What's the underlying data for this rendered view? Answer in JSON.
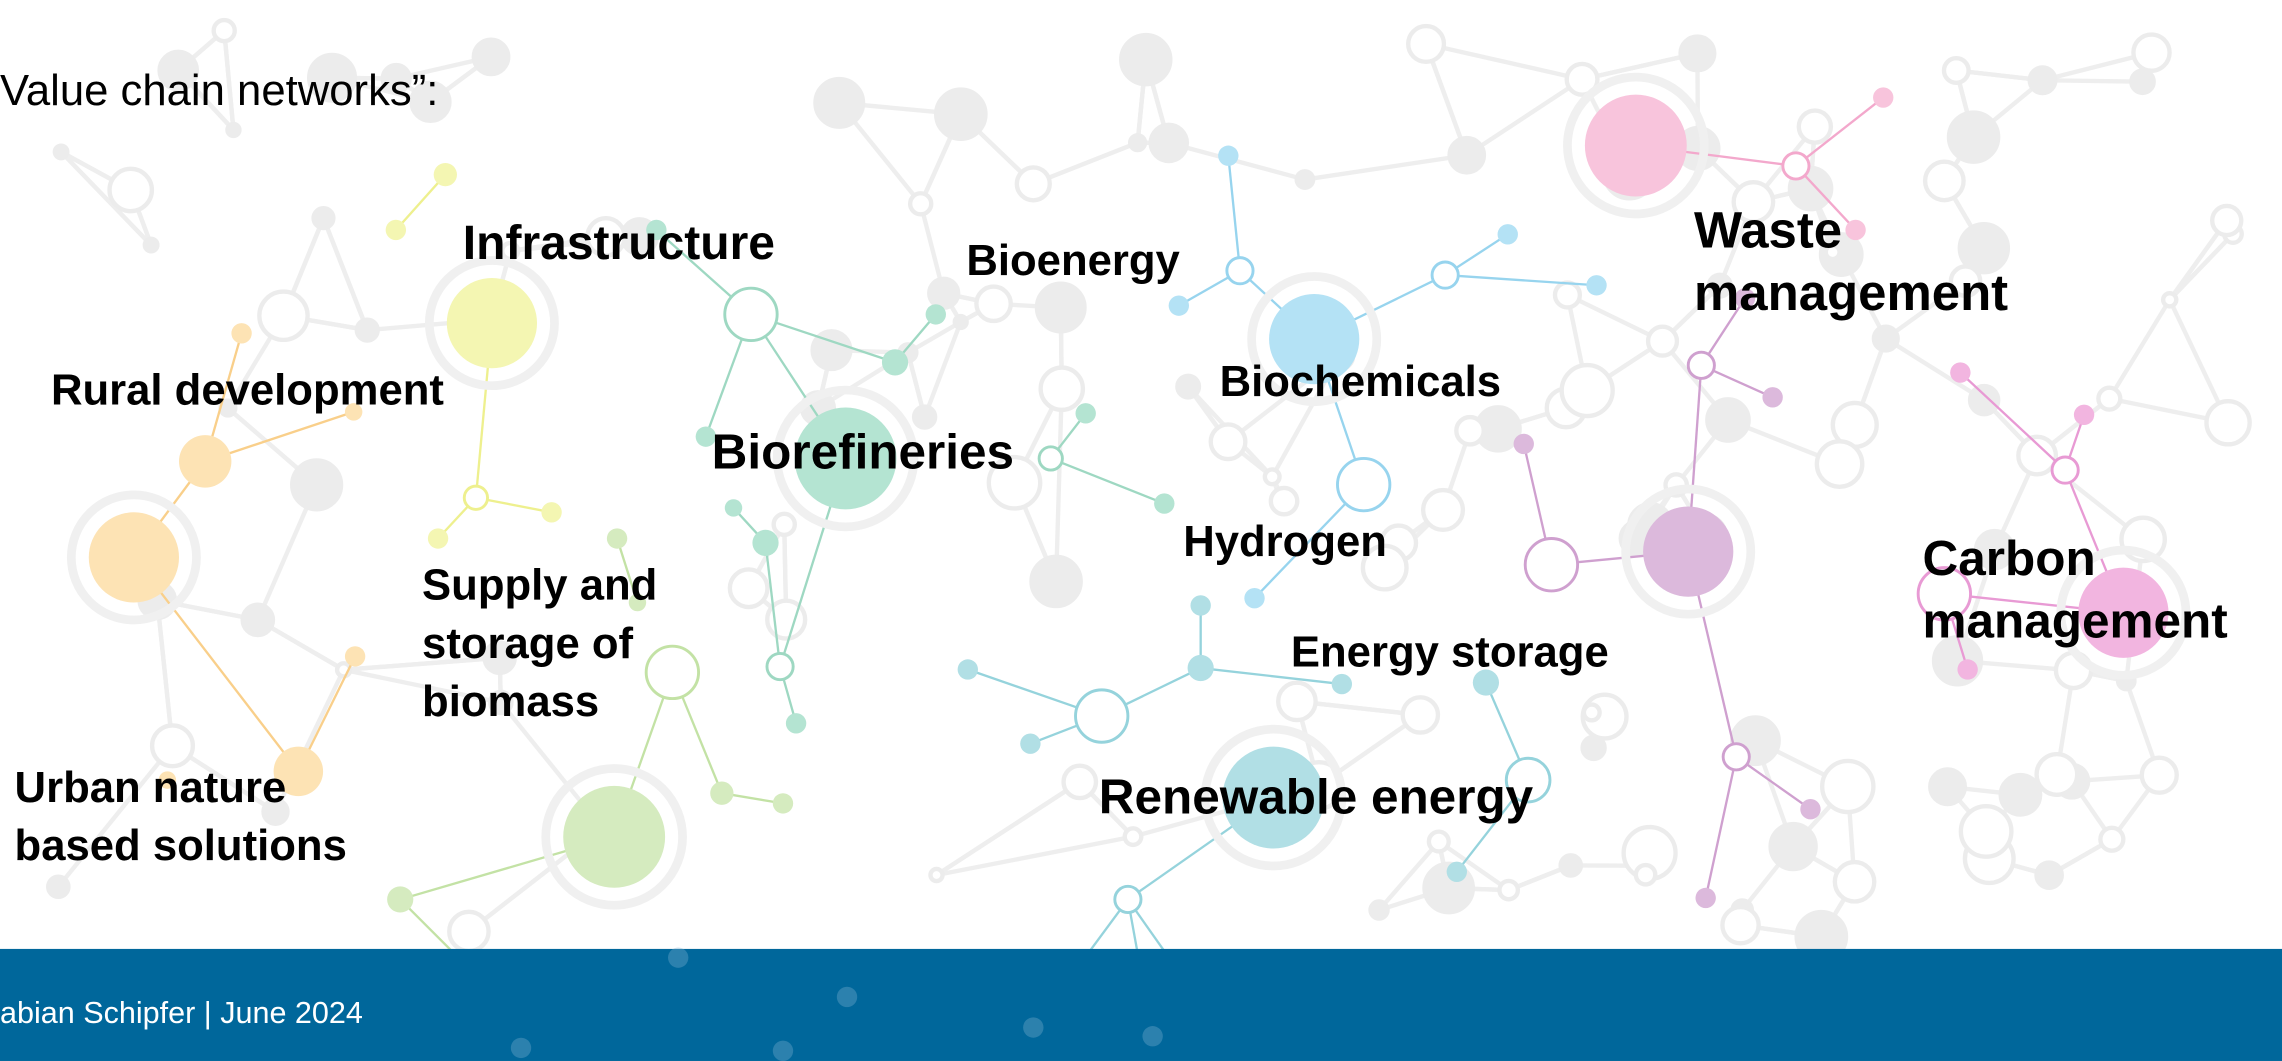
{
  "heading": "Value chain networks”:",
  "footer": "abian Schipfer | June 2024",
  "nodes": [
    {
      "lines": [
        "Infrastructure"
      ]
    },
    {
      "lines": [
        "Bioenergy"
      ]
    },
    {
      "lines": [
        "Waste",
        "management"
      ]
    },
    {
      "lines": [
        "Rural development"
      ]
    },
    {
      "lines": [
        "Biochemicals"
      ]
    },
    {
      "lines": [
        "Biorefineries"
      ]
    },
    {
      "lines": [
        "Hydrogen"
      ]
    },
    {
      "lines": [
        "Supply and",
        "storage of",
        "biomass"
      ]
    },
    {
      "lines": [
        "Carbon",
        "management"
      ]
    },
    {
      "lines": [
        "Energy storage"
      ]
    },
    {
      "lines": [
        "Urban nature",
        "based solutions"
      ]
    },
    {
      "lines": [
        "Renewable energy"
      ]
    }
  ]
}
